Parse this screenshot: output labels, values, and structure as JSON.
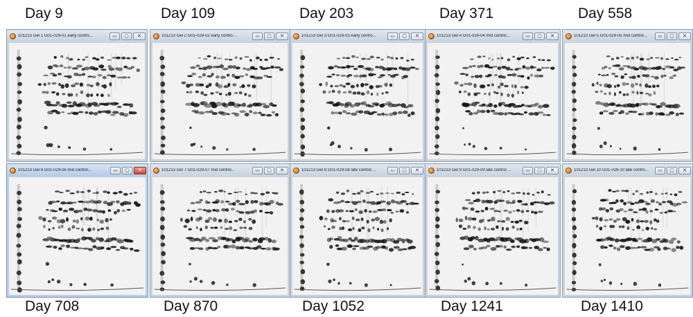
{
  "top_labels": [
    "Day 9",
    "Day 109",
    "Day 203",
    "Day 371",
    "Day 558"
  ],
  "bottom_labels": [
    "Day 708",
    "Day 870",
    "Day 1052",
    "Day 1241",
    "Day 1410"
  ],
  "windows": [
    {
      "title": "101213 Gel 1 G01-029-01 early contro...",
      "active": false
    },
    {
      "title": "101213 Gel 2 G01-029-02 early contro...",
      "active": false
    },
    {
      "title": "101213 Gel 3 G01-029-03 early contro...",
      "active": false
    },
    {
      "title": "101213 Gel 4 G01-029-04 mid control...",
      "active": false
    },
    {
      "title": "101213 Gel 5 G01-029-05 mid control...",
      "active": false
    },
    {
      "title": "101213 Gel 6 G01-029-06 mid control...",
      "active": true
    },
    {
      "title": "101213 Gel 7 G01-029-07 mid control...",
      "active": false
    },
    {
      "title": "101213 Gel 8 G01-029-08 late control ...",
      "active": false
    },
    {
      "title": "101213 Gel 9 G01-029-09 late control ...",
      "active": false
    },
    {
      "title": "101213 Gel 10 G01-029-10 late contro...",
      "active": false
    }
  ],
  "window_controls": {
    "minimize": "▭",
    "maximize": "▢",
    "close": "✕"
  }
}
